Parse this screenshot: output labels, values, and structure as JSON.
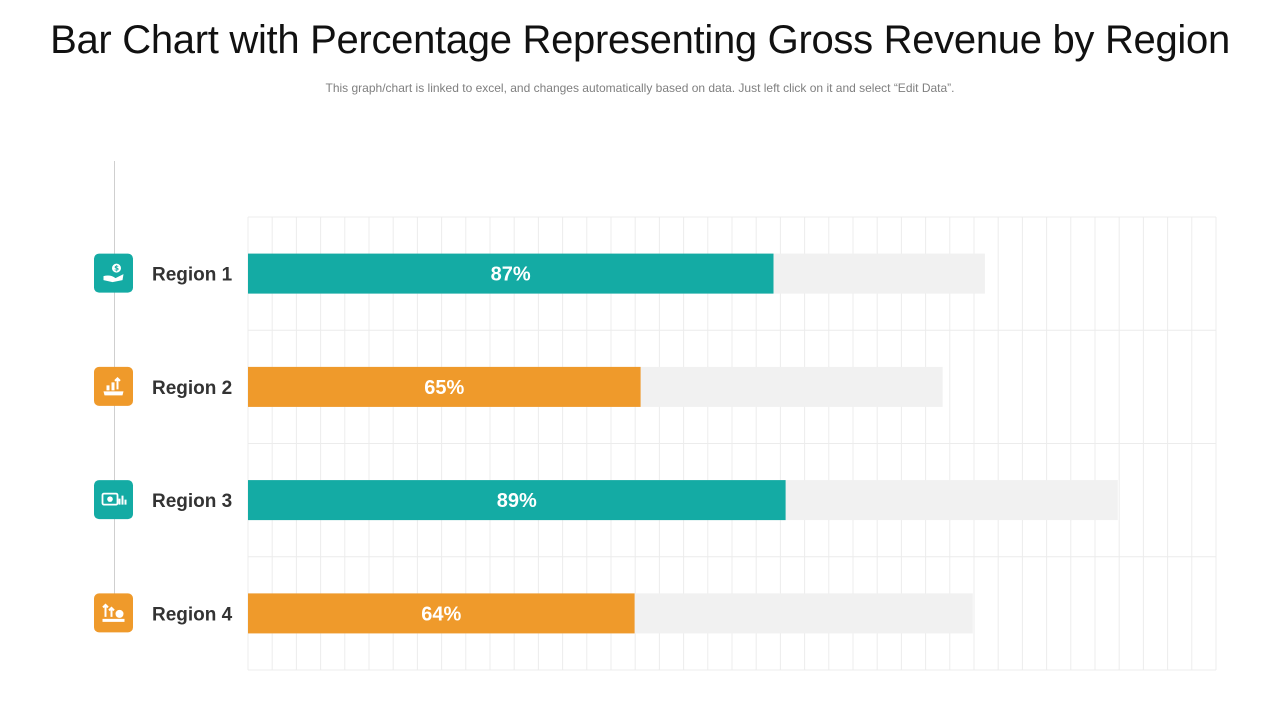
{
  "slide": {
    "title": "Bar Chart with Percentage Representing Gross Revenue by Region",
    "subtitle": "This graph/chart is linked to excel, and changes automatically based on data. Just left click on it and select “Edit Data”."
  },
  "colors": {
    "teal": "#14aba4",
    "orange": "#ef9a2b",
    "track": "#f1f1f1",
    "grid": "#ececec",
    "text": "#333333"
  },
  "chart_data": {
    "type": "bar",
    "orientation": "horizontal",
    "title": "Bar Chart with Percentage Representing Gross Revenue by Region",
    "categories": [
      "Region 1",
      "Region 2",
      "Region 3",
      "Region 4"
    ],
    "values": [
      87,
      65,
      89,
      64
    ],
    "value_labels": [
      "87%",
      "65%",
      "89%",
      "64%"
    ],
    "track_values": [
      122,
      115,
      144,
      120
    ],
    "bar_colors": [
      "teal",
      "orange",
      "teal",
      "orange"
    ],
    "icons": [
      "hand-dollar-icon",
      "growth-chart-icon",
      "money-chart-icon",
      "money-growth-icon"
    ],
    "xlim": [
      0,
      160
    ],
    "grid": true,
    "xlabel": "",
    "ylabel": ""
  }
}
